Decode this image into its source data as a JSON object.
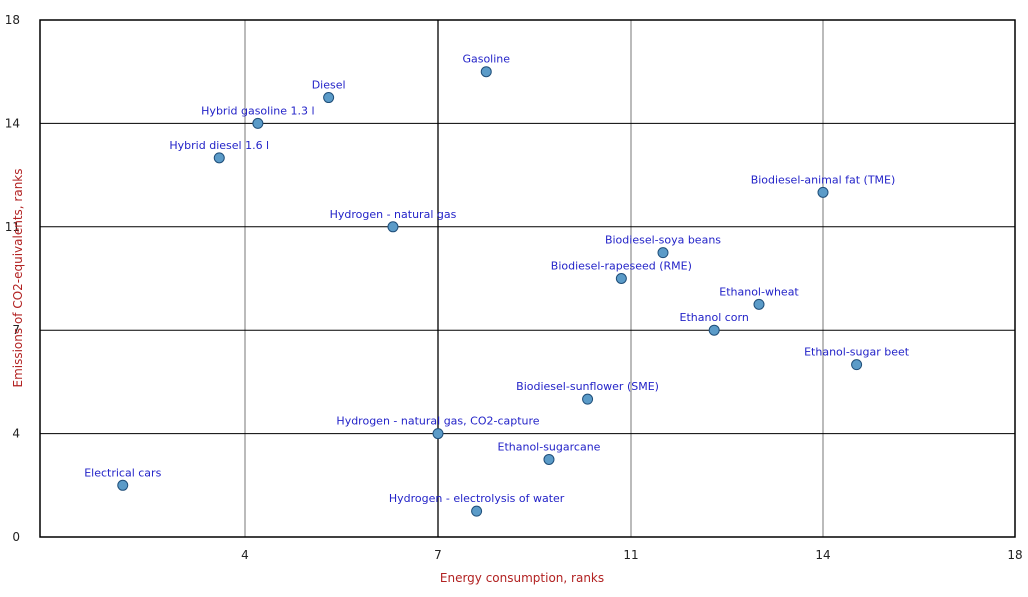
{
  "chart_data": {
    "type": "scatter",
    "title": "",
    "xlabel": "Energy consumption, ranks",
    "ylabel": "Emissions of CO2-equivalents, ranks",
    "xlim": [
      1,
      18
    ],
    "ylim": [
      0,
      18
    ],
    "xticks": [
      4,
      7,
      11,
      14,
      18
    ],
    "yticks": [
      0,
      4,
      7,
      11,
      14,
      18
    ],
    "xtick_labels": [
      "4",
      "7",
      "11",
      "14",
      "18"
    ],
    "ytick_labels": [
      "0",
      "4",
      "7",
      "11",
      "14",
      "18"
    ],
    "grid": true,
    "colors": {
      "marker_fill": "#5b9bc8",
      "marker_stroke": "#1f4e79",
      "label": "#2323c8",
      "axis_label": "#b22222",
      "grid": "#555555",
      "frame": "#000000"
    },
    "points": [
      {
        "label": "Electrical cars",
        "x": 2.1,
        "y": 2.0
      },
      {
        "label": "Hybrid diesel 1.6 l",
        "x": 3.6,
        "y": 13.0
      },
      {
        "label": "Hybrid gasoline 1.3 l",
        "x": 4.2,
        "y": 14.0
      },
      {
        "label": "Diesel",
        "x": 5.3,
        "y": 15.0
      },
      {
        "label": "Gasoline",
        "x": 8.0,
        "y": 16.0
      },
      {
        "label": "Hydrogen - natural gas",
        "x": 6.3,
        "y": 11.0
      },
      {
        "label": "Hydrogen - natural gas, CO2-capture",
        "x": 7.0,
        "y": 4.0
      },
      {
        "label": "Hydrogen - electrolysis of water",
        "x": 7.8,
        "y": 1.0
      },
      {
        "label": "Ethanol-sugarcane",
        "x": 9.3,
        "y": 3.0
      },
      {
        "label": "Biodiesel-sunflower (SME)",
        "x": 10.1,
        "y": 5.0
      },
      {
        "label": "Biodiesel-rapeseed (RME)",
        "x": 10.8,
        "y": 9.0
      },
      {
        "label": "Biodiesel-soya beans",
        "x": 11.5,
        "y": 10.0
      },
      {
        "label": "Ethanol corn",
        "x": 12.3,
        "y": 7.0
      },
      {
        "label": "Ethanol-wheat",
        "x": 13.0,
        "y": 8.0
      },
      {
        "label": "Biodiesel-animal fat (TME)",
        "x": 14.0,
        "y": 12.0
      },
      {
        "label": "Ethanol-sugar beet",
        "x": 14.7,
        "y": 6.0
      }
    ]
  }
}
